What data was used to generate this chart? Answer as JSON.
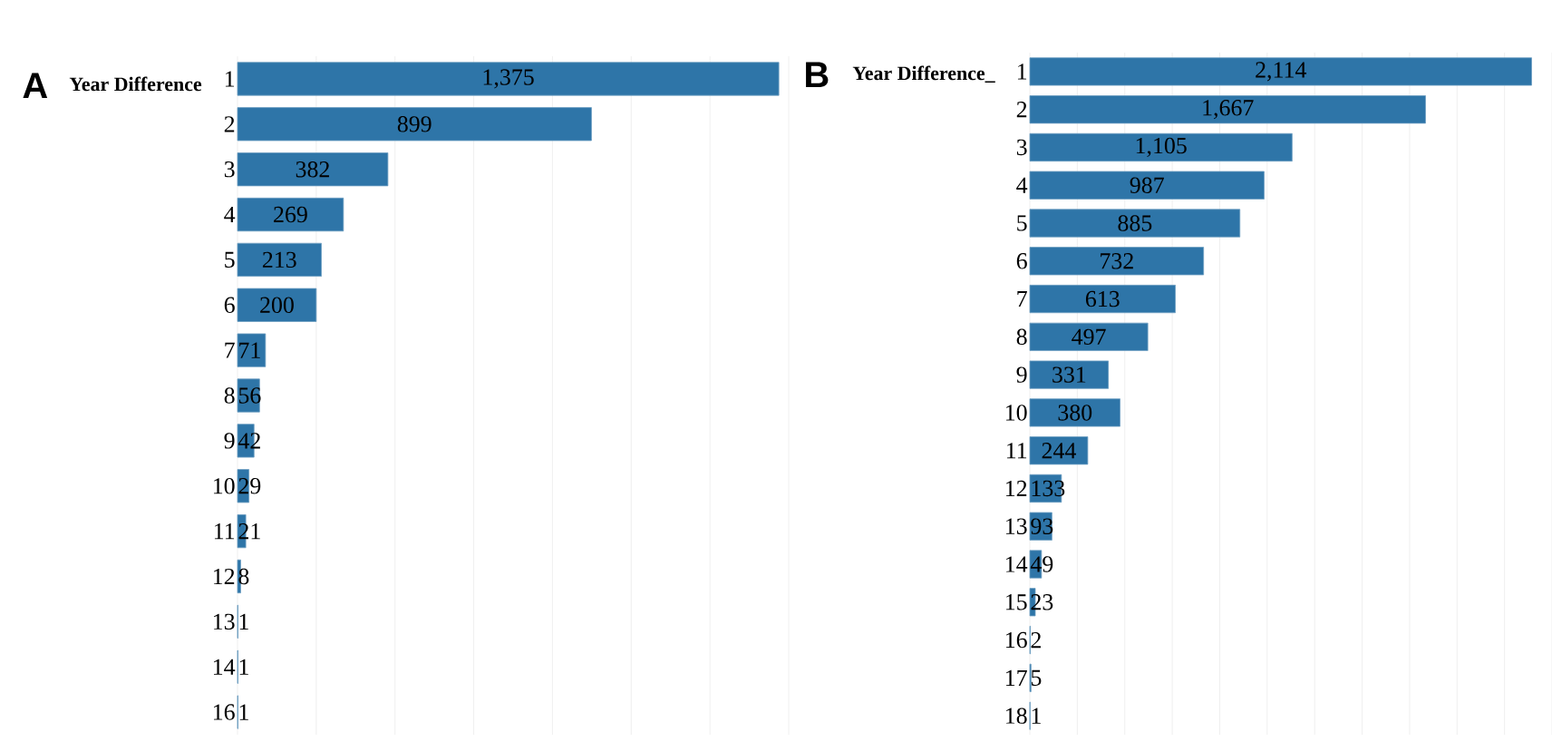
{
  "chart_data": [
    {
      "type": "bar",
      "orientation": "horizontal",
      "title": "Year Difference",
      "annotations": [
        "A"
      ],
      "color": "#2e75a8",
      "categories": [
        "1",
        "2",
        "3",
        "4",
        "5",
        "6",
        "7",
        "8",
        "9",
        "10",
        "11",
        "12",
        "13",
        "14",
        "16"
      ],
      "values": [
        1375,
        899,
        382,
        269,
        213,
        200,
        71,
        56,
        42,
        29,
        21,
        8,
        1,
        1,
        1
      ],
      "value_labels": [
        "1,375",
        "899",
        "382",
        "269",
        "213",
        "200",
        "71",
        "56",
        "42",
        "29",
        "21",
        "8",
        "1",
        "1",
        "1"
      ],
      "xlim": [
        0,
        1400
      ],
      "xticks": [
        {
          "value": 0,
          "label": null
        },
        {
          "value": 200,
          "label": null
        },
        {
          "value": 400,
          "label": null
        },
        {
          "value": 600,
          "label": null
        },
        {
          "value": 800,
          "label": null
        },
        {
          "value": 1000,
          "label": null
        },
        {
          "value": 1200,
          "label": null
        },
        {
          "value": 1400,
          "label": null
        }
      ],
      "tick_labels": "y",
      "grid": "x"
    },
    {
      "type": "bar",
      "orientation": "horizontal",
      "title": "Year Difference_",
      "annotations": [
        "B"
      ],
      "color": "#2e75a8",
      "categories": [
        "1",
        "2",
        "3",
        "4",
        "5",
        "6",
        "7",
        "8",
        "9",
        "10",
        "11",
        "12",
        "13",
        "14",
        "15",
        "16",
        "17",
        "18"
      ],
      "values": [
        2114,
        1667,
        1105,
        987,
        885,
        732,
        613,
        497,
        331,
        380,
        244,
        133,
        93,
        49,
        23,
        2,
        5,
        1
      ],
      "value_labels": [
        "2,114",
        "1,667",
        "1,105",
        "987",
        "885",
        "732",
        "613",
        "497",
        "331",
        "380",
        "244",
        "133",
        "93",
        "49",
        "23",
        "2",
        "5",
        "1"
      ],
      "xlim": [
        0,
        2200
      ],
      "xticks": [
        {
          "value": 0,
          "label": null
        },
        {
          "value": 200,
          "label": null
        },
        {
          "value": 400,
          "label": null
        },
        {
          "value": 600,
          "label": null
        },
        {
          "value": 800,
          "label": null
        },
        {
          "value": 1000,
          "label": null
        },
        {
          "value": 1200,
          "label": null
        },
        {
          "value": 1400,
          "label": null
        },
        {
          "value": 1600,
          "label": null
        },
        {
          "value": 1800,
          "label": null
        },
        {
          "value": 2000,
          "label": null
        },
        {
          "value": 2200,
          "label": null
        }
      ],
      "tick_labels": "y",
      "grid": "x"
    }
  ]
}
